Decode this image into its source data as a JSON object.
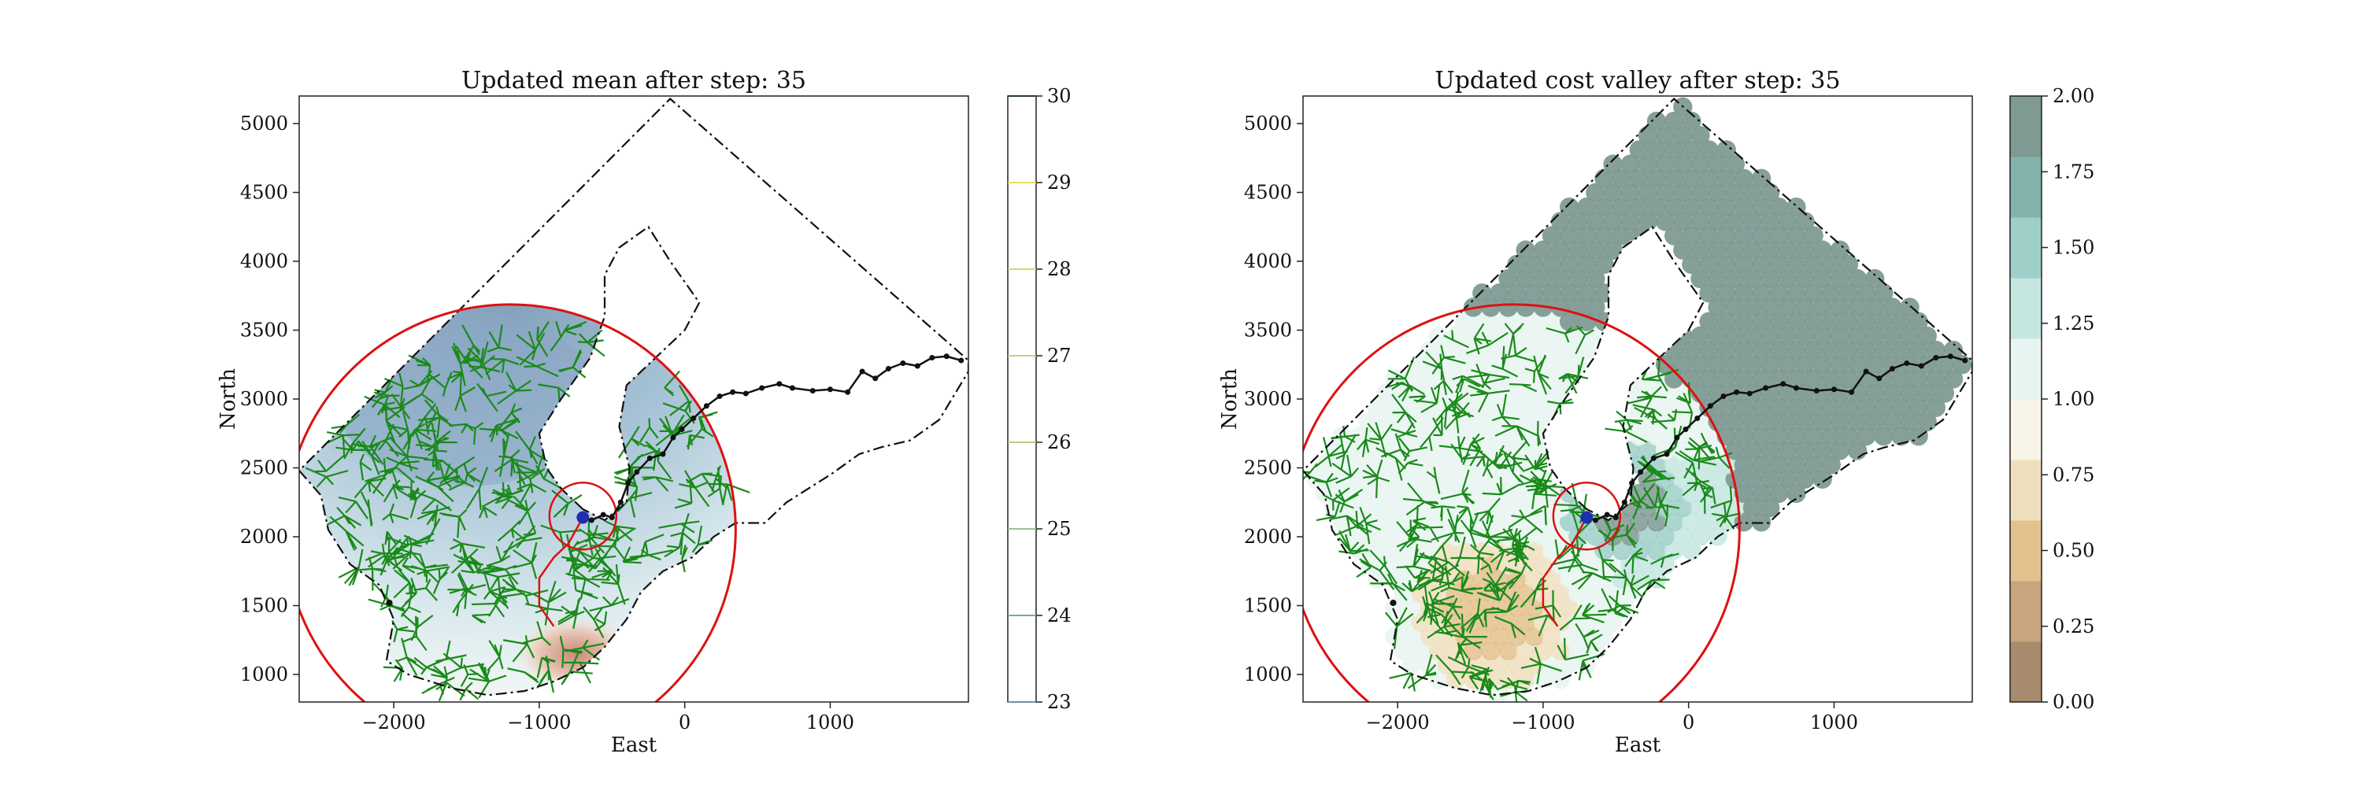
{
  "chart_data": [
    {
      "type": "map-contour",
      "title": "Updated mean after step: 35",
      "xlabel": "East",
      "ylabel": "North",
      "xlim": [
        -2650,
        1950
      ],
      "ylim": [
        800,
        5200
      ],
      "xticks": [
        -2000,
        -1000,
        0,
        1000
      ],
      "yticks": [
        1000,
        1500,
        2000,
        2500,
        3000,
        3500,
        4000,
        4500,
        5000
      ],
      "colorbar": {
        "min": 23,
        "max": 30,
        "ticks": [
          23,
          24,
          25,
          26,
          27,
          28,
          29,
          30
        ],
        "style": "contour-lines"
      }
    },
    {
      "type": "map-contour",
      "title": "Updated cost valley after step: 35",
      "xlabel": "East",
      "ylabel": "North",
      "xlim": [
        -2650,
        1950
      ],
      "ylim": [
        800,
        5200
      ],
      "xticks": [
        -2000,
        -1000,
        0,
        1000
      ],
      "yticks": [
        1000,
        1500,
        2000,
        2500,
        3000,
        3500,
        4000,
        4500,
        5000
      ],
      "colorbar": {
        "min": 0,
        "max": 2,
        "ticks": [
          "0.00",
          "0.25",
          "0.50",
          "0.75",
          "1.00",
          "1.25",
          "1.50",
          "1.75",
          "2.00"
        ],
        "style": "filled-levels",
        "level_colors": [
          "#a88b6c",
          "#c9a47c",
          "#e3c18d",
          "#f0dfbf",
          "#f8f4e7",
          "#e8f4f1",
          "#c6e6e0",
          "#9fcfc9",
          "#84b3ad",
          "#7f9a93"
        ]
      }
    }
  ],
  "overlays": {
    "operational_boundary": [
      [
        -2650,
        2480
      ],
      [
        -2500,
        2300
      ],
      [
        -2450,
        2050
      ],
      [
        -2300,
        1800
      ],
      [
        -2100,
        1650
      ],
      [
        -2000,
        1400
      ],
      [
        -2050,
        1100
      ],
      [
        -1900,
        1000
      ],
      [
        -1600,
        900
      ],
      [
        -1350,
        850
      ],
      [
        -1100,
        880
      ],
      [
        -900,
        950
      ],
      [
        -700,
        1050
      ],
      [
        -550,
        1200
      ],
      [
        -400,
        1400
      ],
      [
        -300,
        1600
      ],
      [
        -150,
        1750
      ],
      [
        50,
        1850
      ],
      [
        200,
        2000
      ],
      [
        350,
        2100
      ],
      [
        550,
        2100
      ],
      [
        700,
        2250
      ],
      [
        850,
        2350
      ],
      [
        1000,
        2450
      ],
      [
        1200,
        2600
      ],
      [
        1350,
        2650
      ],
      [
        1550,
        2700
      ],
      [
        1750,
        2850
      ],
      [
        1950,
        3200
      ],
      [
        1950,
        3280
      ],
      [
        -100,
        5180
      ],
      [
        -2650,
        2480
      ]
    ],
    "inner_boundary": [
      [
        -700,
        2200
      ],
      [
        -850,
        2350
      ],
      [
        -950,
        2500
      ],
      [
        -1000,
        2750
      ],
      [
        -850,
        3000
      ],
      [
        -650,
        3300
      ],
      [
        -550,
        3600
      ],
      [
        -550,
        3900
      ],
      [
        -450,
        4100
      ],
      [
        -250,
        4250
      ],
      [
        -100,
        4000
      ],
      [
        100,
        3700
      ],
      [
        0,
        3500
      ],
      [
        -200,
        3300
      ],
      [
        -400,
        3100
      ],
      [
        -450,
        2800
      ],
      [
        -380,
        2500
      ],
      [
        -400,
        2250
      ],
      [
        -550,
        2120
      ],
      [
        -700,
        2200
      ]
    ],
    "path": [
      [
        -700,
        2140
      ],
      [
        -640,
        2120
      ],
      [
        -560,
        2160
      ],
      [
        -500,
        2140
      ],
      [
        -440,
        2250
      ],
      [
        -390,
        2390
      ],
      [
        -330,
        2470
      ],
      [
        -240,
        2570
      ],
      [
        -150,
        2600
      ],
      [
        -80,
        2720
      ],
      [
        -20,
        2780
      ],
      [
        60,
        2860
      ],
      [
        150,
        2950
      ],
      [
        240,
        3020
      ],
      [
        330,
        3050
      ],
      [
        420,
        3040
      ],
      [
        530,
        3080
      ],
      [
        650,
        3110
      ],
      [
        740,
        3080
      ],
      [
        880,
        3060
      ],
      [
        1000,
        3070
      ],
      [
        1120,
        3050
      ],
      [
        1220,
        3200
      ],
      [
        1310,
        3150
      ],
      [
        1400,
        3220
      ],
      [
        1500,
        3260
      ],
      [
        1600,
        3240
      ],
      [
        1700,
        3300
      ],
      [
        1800,
        3310
      ],
      [
        1900,
        3280
      ]
    ],
    "radius_circle": {
      "cx": -1200,
      "cy": 2050,
      "r": 1550
    },
    "small_circle": {
      "cx": -700,
      "cy": 2150,
      "r": 230
    },
    "current_location": [
      -700,
      2140
    ]
  }
}
